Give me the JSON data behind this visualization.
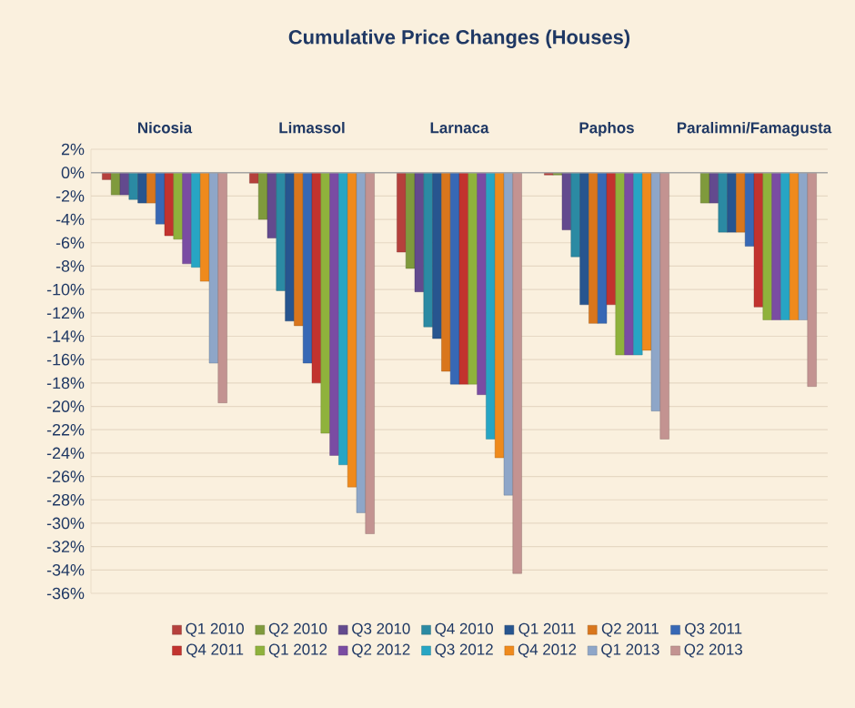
{
  "chart_data": {
    "type": "bar",
    "title": "Cumulative Price Changes (Houses)",
    "categories": [
      "Nicosia",
      "Limassol",
      "Larnaca",
      "Paphos",
      "Paralimni/Famagusta"
    ],
    "series": [
      {
        "name": "Q1 2010",
        "color": "#b5403c",
        "values": [
          -0.6,
          -0.9,
          -6.8,
          -0.2,
          null
        ]
      },
      {
        "name": "Q2 2010",
        "color": "#7f9a3c",
        "values": [
          -1.9,
          -4.0,
          -8.2,
          -0.2,
          -2.6
        ]
      },
      {
        "name": "Q3 2010",
        "color": "#634a8e",
        "values": [
          -1.9,
          -5.6,
          -10.2,
          -4.9,
          -2.6
        ]
      },
      {
        "name": "Q4 2010",
        "color": "#2b8aa3",
        "values": [
          -2.3,
          -10.1,
          -13.2,
          -7.2,
          -5.1
        ]
      },
      {
        "name": "Q1 2011",
        "color": "#27558f",
        "values": [
          -2.6,
          -12.7,
          -14.2,
          -11.3,
          -5.1
        ]
      },
      {
        "name": "Q2 2011",
        "color": "#d9761c",
        "values": [
          -2.6,
          -13.1,
          -17.0,
          -12.9,
          -5.1
        ]
      },
      {
        "name": "Q3 2011",
        "color": "#3768b5",
        "values": [
          -4.4,
          -16.3,
          -18.1,
          -12.9,
          -6.3
        ]
      },
      {
        "name": "Q4 2011",
        "color": "#c2332e",
        "values": [
          -5.4,
          -18.0,
          -18.1,
          -11.3,
          -11.5
        ]
      },
      {
        "name": "Q1 2012",
        "color": "#8fb23c",
        "values": [
          -5.7,
          -22.3,
          -18.1,
          -15.6,
          -12.6
        ]
      },
      {
        "name": "Q2 2012",
        "color": "#7a4ca3",
        "values": [
          -7.8,
          -24.2,
          -19.0,
          -15.6,
          -12.6
        ]
      },
      {
        "name": "Q3 2012",
        "color": "#27a5c4",
        "values": [
          -8.1,
          -25.0,
          -22.8,
          -15.6,
          -12.6
        ]
      },
      {
        "name": "Q4 2012",
        "color": "#ef8a1c",
        "values": [
          -9.3,
          -26.9,
          -24.4,
          -15.2,
          -12.6
        ]
      },
      {
        "name": "Q1 2013",
        "color": "#8ea6c8",
        "values": [
          -16.3,
          -29.1,
          -27.6,
          -20.4,
          -12.6
        ]
      },
      {
        "name": "Q2 2013",
        "color": "#c39391",
        "values": [
          -19.7,
          -30.9,
          -34.3,
          -22.8,
          -18.3
        ]
      }
    ],
    "ylim": [
      -36,
      2
    ],
    "yticks": [
      {
        "value": 2,
        "label": "2%"
      },
      {
        "value": 0,
        "label": "0%"
      },
      {
        "value": -2,
        "label": "-2%"
      },
      {
        "value": -4,
        "label": "-4%"
      },
      {
        "value": -6,
        "label": "-6%"
      },
      {
        "value": -8,
        "label": "-8%"
      },
      {
        "value": -10,
        "label": "-10%"
      },
      {
        "value": -12,
        "label": "-12%"
      },
      {
        "value": -14,
        "label": "-14%"
      },
      {
        "value": -16,
        "label": "-16%"
      },
      {
        "value": -18,
        "label": "-18%"
      },
      {
        "value": -20,
        "label": "-20%"
      },
      {
        "value": -22,
        "label": "-22%"
      },
      {
        "value": -24,
        "label": "-24%"
      },
      {
        "value": -26,
        "label": "-26%"
      },
      {
        "value": -28,
        "label": "-28%"
      },
      {
        "value": -30,
        "label": "-30%"
      },
      {
        "value": -32,
        "label": "-32%"
      },
      {
        "value": -34,
        "label": "-34%"
      },
      {
        "value": -36,
        "label": "-36%"
      }
    ],
    "grid": "y",
    "legend": "bottom"
  }
}
